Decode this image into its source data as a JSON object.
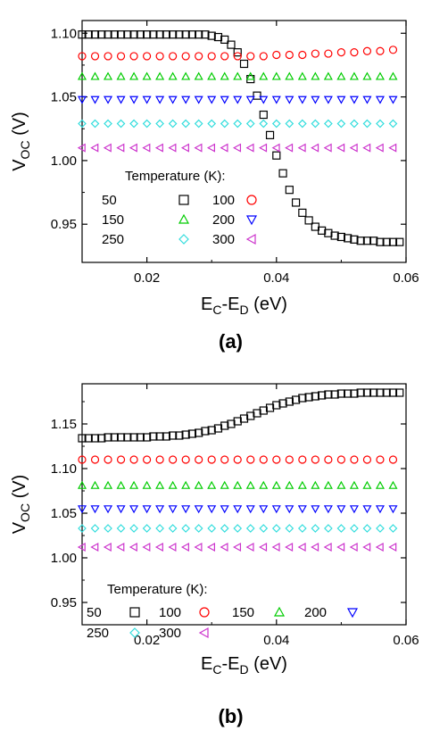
{
  "chart_data": [
    {
      "type": "scatter",
      "panel_label": "(a)",
      "xlabel": "E_C-E_D (eV)",
      "ylabel": "V_OC (V)",
      "xlim": [
        0.01,
        0.06
      ],
      "ylim": [
        0.92,
        1.11
      ],
      "xticks": [
        "0.02",
        "0.04",
        "0.06"
      ],
      "yticks": [
        "0.95",
        "1.00",
        "1.05",
        "1.10"
      ],
      "legend_title": "Temperature (K):",
      "legend_position": "bottom-left",
      "series": [
        {
          "name": "50",
          "marker": "square",
          "color": "#000000",
          "x": [
            0.01,
            0.011,
            0.012,
            0.013,
            0.014,
            0.015,
            0.016,
            0.017,
            0.018,
            0.019,
            0.02,
            0.021,
            0.022,
            0.023,
            0.024,
            0.025,
            0.026,
            0.027,
            0.028,
            0.029,
            0.03,
            0.031,
            0.032,
            0.033,
            0.034,
            0.035,
            0.036,
            0.037,
            0.038,
            0.039,
            0.04,
            0.041,
            0.042,
            0.043,
            0.044,
            0.045,
            0.046,
            0.047,
            0.048,
            0.049,
            0.05,
            0.051,
            0.052,
            0.053,
            0.054,
            0.055,
            0.056,
            0.057,
            0.058,
            0.059
          ],
          "y": [
            1.099,
            1.099,
            1.099,
            1.099,
            1.099,
            1.099,
            1.099,
            1.099,
            1.099,
            1.099,
            1.099,
            1.099,
            1.099,
            1.099,
            1.099,
            1.099,
            1.099,
            1.099,
            1.099,
            1.099,
            1.098,
            1.097,
            1.095,
            1.091,
            1.085,
            1.076,
            1.064,
            1.051,
            1.036,
            1.02,
            1.004,
            0.99,
            0.977,
            0.967,
            0.959,
            0.953,
            0.948,
            0.945,
            0.943,
            0.941,
            0.94,
            0.939,
            0.938,
            0.937,
            0.937,
            0.937,
            0.936,
            0.936,
            0.936,
            0.936
          ]
        },
        {
          "name": "100",
          "marker": "circle",
          "color": "#ff0000",
          "x": [
            0.01,
            0.012,
            0.014,
            0.016,
            0.018,
            0.02,
            0.022,
            0.024,
            0.026,
            0.028,
            0.03,
            0.032,
            0.034,
            0.036,
            0.038,
            0.04,
            0.042,
            0.044,
            0.046,
            0.048,
            0.05,
            0.052,
            0.054,
            0.056,
            0.058
          ],
          "y": [
            1.082,
            1.082,
            1.082,
            1.082,
            1.082,
            1.082,
            1.082,
            1.082,
            1.082,
            1.082,
            1.082,
            1.082,
            1.082,
            1.082,
            1.082,
            1.083,
            1.083,
            1.083,
            1.084,
            1.084,
            1.085,
            1.085,
            1.086,
            1.086,
            1.087
          ]
        },
        {
          "name": "150",
          "marker": "triangle-up",
          "color": "#00cc00",
          "x": [
            0.01,
            0.012,
            0.014,
            0.016,
            0.018,
            0.02,
            0.022,
            0.024,
            0.026,
            0.028,
            0.03,
            0.032,
            0.034,
            0.036,
            0.038,
            0.04,
            0.042,
            0.044,
            0.046,
            0.048,
            0.05,
            0.052,
            0.054,
            0.056,
            0.058
          ],
          "y": [
            1.066,
            1.066,
            1.066,
            1.066,
            1.066,
            1.066,
            1.066,
            1.066,
            1.066,
            1.066,
            1.066,
            1.066,
            1.066,
            1.066,
            1.066,
            1.066,
            1.066,
            1.066,
            1.066,
            1.066,
            1.066,
            1.066,
            1.066,
            1.066,
            1.066
          ]
        },
        {
          "name": "200",
          "marker": "triangle-down",
          "color": "#0000ff",
          "x": [
            0.01,
            0.012,
            0.014,
            0.016,
            0.018,
            0.02,
            0.022,
            0.024,
            0.026,
            0.028,
            0.03,
            0.032,
            0.034,
            0.036,
            0.038,
            0.04,
            0.042,
            0.044,
            0.046,
            0.048,
            0.05,
            0.052,
            0.054,
            0.056,
            0.058
          ],
          "y": [
            1.048,
            1.048,
            1.048,
            1.048,
            1.048,
            1.048,
            1.048,
            1.048,
            1.048,
            1.048,
            1.048,
            1.048,
            1.048,
            1.048,
            1.048,
            1.048,
            1.048,
            1.048,
            1.048,
            1.048,
            1.048,
            1.048,
            1.048,
            1.048,
            1.048
          ]
        },
        {
          "name": "250",
          "marker": "diamond",
          "color": "#33dddd",
          "x": [
            0.01,
            0.012,
            0.014,
            0.016,
            0.018,
            0.02,
            0.022,
            0.024,
            0.026,
            0.028,
            0.03,
            0.032,
            0.034,
            0.036,
            0.038,
            0.04,
            0.042,
            0.044,
            0.046,
            0.048,
            0.05,
            0.052,
            0.054,
            0.056,
            0.058
          ],
          "y": [
            1.029,
            1.029,
            1.029,
            1.029,
            1.029,
            1.029,
            1.029,
            1.029,
            1.029,
            1.029,
            1.029,
            1.029,
            1.029,
            1.029,
            1.029,
            1.029,
            1.029,
            1.029,
            1.029,
            1.029,
            1.029,
            1.029,
            1.029,
            1.029,
            1.029
          ]
        },
        {
          "name": "300",
          "marker": "triangle-left",
          "color": "#cc33cc",
          "x": [
            0.01,
            0.012,
            0.014,
            0.016,
            0.018,
            0.02,
            0.022,
            0.024,
            0.026,
            0.028,
            0.03,
            0.032,
            0.034,
            0.036,
            0.038,
            0.04,
            0.042,
            0.044,
            0.046,
            0.048,
            0.05,
            0.052,
            0.054,
            0.056,
            0.058
          ],
          "y": [
            1.01,
            1.01,
            1.01,
            1.01,
            1.01,
            1.01,
            1.01,
            1.01,
            1.01,
            1.01,
            1.01,
            1.01,
            1.01,
            1.01,
            1.01,
            1.01,
            1.01,
            1.01,
            1.01,
            1.01,
            1.01,
            1.01,
            1.01,
            1.01,
            1.01
          ]
        }
      ]
    },
    {
      "type": "scatter",
      "panel_label": "(b)",
      "xlabel": "E_C-E_D (eV)",
      "ylabel": "V_OC (V)",
      "xlim": [
        0.01,
        0.06
      ],
      "ylim": [
        0.925,
        1.195
      ],
      "xticks": [
        "0.02",
        "0.04",
        "0.06"
      ],
      "yticks": [
        "0.95",
        "1.00",
        "1.05",
        "1.10",
        "1.15"
      ],
      "legend_title": "Temperature (K):",
      "legend_position": "bottom-left",
      "series": [
        {
          "name": "50",
          "marker": "square",
          "color": "#000000",
          "x": [
            0.01,
            0.011,
            0.012,
            0.013,
            0.014,
            0.015,
            0.016,
            0.017,
            0.018,
            0.019,
            0.02,
            0.021,
            0.022,
            0.023,
            0.024,
            0.025,
            0.026,
            0.027,
            0.028,
            0.029,
            0.03,
            0.031,
            0.032,
            0.033,
            0.034,
            0.035,
            0.036,
            0.037,
            0.038,
            0.039,
            0.04,
            0.041,
            0.042,
            0.043,
            0.044,
            0.045,
            0.046,
            0.047,
            0.048,
            0.049,
            0.05,
            0.051,
            0.052,
            0.053,
            0.054,
            0.055,
            0.056,
            0.057,
            0.058,
            0.059
          ],
          "y": [
            1.134,
            1.134,
            1.134,
            1.134,
            1.135,
            1.135,
            1.135,
            1.135,
            1.135,
            1.135,
            1.135,
            1.136,
            1.136,
            1.136,
            1.137,
            1.137,
            1.138,
            1.139,
            1.14,
            1.142,
            1.143,
            1.145,
            1.148,
            1.15,
            1.153,
            1.156,
            1.159,
            1.162,
            1.165,
            1.168,
            1.171,
            1.173,
            1.175,
            1.177,
            1.179,
            1.18,
            1.181,
            1.182,
            1.183,
            1.183,
            1.184,
            1.184,
            1.184,
            1.185,
            1.185,
            1.185,
            1.185,
            1.185,
            1.185,
            1.185
          ]
        },
        {
          "name": "100",
          "marker": "circle",
          "color": "#ff0000",
          "x": [
            0.01,
            0.012,
            0.014,
            0.016,
            0.018,
            0.02,
            0.022,
            0.024,
            0.026,
            0.028,
            0.03,
            0.032,
            0.034,
            0.036,
            0.038,
            0.04,
            0.042,
            0.044,
            0.046,
            0.048,
            0.05,
            0.052,
            0.054,
            0.056,
            0.058
          ],
          "y": [
            1.11,
            1.11,
            1.11,
            1.11,
            1.11,
            1.11,
            1.11,
            1.11,
            1.11,
            1.11,
            1.11,
            1.11,
            1.11,
            1.11,
            1.11,
            1.11,
            1.11,
            1.11,
            1.11,
            1.11,
            1.11,
            1.11,
            1.11,
            1.11,
            1.11
          ]
        },
        {
          "name": "150",
          "marker": "triangle-up",
          "color": "#00cc00",
          "x": [
            0.01,
            0.012,
            0.014,
            0.016,
            0.018,
            0.02,
            0.022,
            0.024,
            0.026,
            0.028,
            0.03,
            0.032,
            0.034,
            0.036,
            0.038,
            0.04,
            0.042,
            0.044,
            0.046,
            0.048,
            0.05,
            0.052,
            0.054,
            0.056,
            0.058
          ],
          "y": [
            1.081,
            1.081,
            1.081,
            1.081,
            1.081,
            1.081,
            1.081,
            1.081,
            1.081,
            1.081,
            1.081,
            1.081,
            1.081,
            1.081,
            1.081,
            1.081,
            1.081,
            1.081,
            1.081,
            1.081,
            1.081,
            1.081,
            1.081,
            1.081,
            1.081
          ]
        },
        {
          "name": "200",
          "marker": "triangle-down",
          "color": "#0000ff",
          "x": [
            0.01,
            0.012,
            0.014,
            0.016,
            0.018,
            0.02,
            0.022,
            0.024,
            0.026,
            0.028,
            0.03,
            0.032,
            0.034,
            0.036,
            0.038,
            0.04,
            0.042,
            0.044,
            0.046,
            0.048,
            0.05,
            0.052,
            0.054,
            0.056,
            0.058
          ],
          "y": [
            1.055,
            1.055,
            1.055,
            1.055,
            1.055,
            1.055,
            1.055,
            1.055,
            1.055,
            1.055,
            1.055,
            1.055,
            1.055,
            1.055,
            1.055,
            1.055,
            1.055,
            1.055,
            1.055,
            1.055,
            1.055,
            1.055,
            1.055,
            1.055,
            1.055
          ]
        },
        {
          "name": "250",
          "marker": "diamond",
          "color": "#33dddd",
          "x": [
            0.01,
            0.012,
            0.014,
            0.016,
            0.018,
            0.02,
            0.022,
            0.024,
            0.026,
            0.028,
            0.03,
            0.032,
            0.034,
            0.036,
            0.038,
            0.04,
            0.042,
            0.044,
            0.046,
            0.048,
            0.05,
            0.052,
            0.054,
            0.056,
            0.058
          ],
          "y": [
            1.033,
            1.033,
            1.033,
            1.033,
            1.033,
            1.033,
            1.033,
            1.033,
            1.033,
            1.033,
            1.033,
            1.033,
            1.033,
            1.033,
            1.033,
            1.033,
            1.033,
            1.033,
            1.033,
            1.033,
            1.033,
            1.033,
            1.033,
            1.033,
            1.033
          ]
        },
        {
          "name": "300",
          "marker": "triangle-left",
          "color": "#cc33cc",
          "x": [
            0.01,
            0.012,
            0.014,
            0.016,
            0.018,
            0.02,
            0.022,
            0.024,
            0.026,
            0.028,
            0.03,
            0.032,
            0.034,
            0.036,
            0.038,
            0.04,
            0.042,
            0.044,
            0.046,
            0.048,
            0.05,
            0.052,
            0.054,
            0.056,
            0.058
          ],
          "y": [
            1.012,
            1.012,
            1.012,
            1.012,
            1.012,
            1.012,
            1.012,
            1.012,
            1.012,
            1.012,
            1.012,
            1.012,
            1.012,
            1.012,
            1.012,
            1.012,
            1.012,
            1.012,
            1.012,
            1.012,
            1.012,
            1.012,
            1.012,
            1.012,
            1.012
          ]
        }
      ]
    }
  ]
}
